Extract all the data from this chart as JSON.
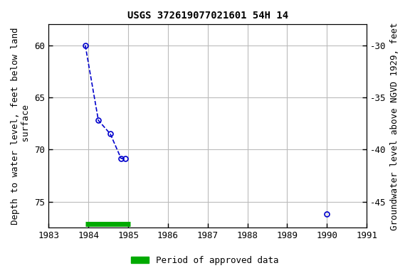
{
  "title": "USGS 372619077021601 54H 14",
  "ylabel_left": "Depth to water level, feet below land\n surface",
  "ylabel_right": "Groundwater level above NGVD 1929, feet",
  "xlim": [
    1983,
    1991
  ],
  "ylim_left": [
    77.5,
    58.0
  ],
  "ylim_right": [
    -47.5,
    -28.0
  ],
  "xticks": [
    1983,
    1984,
    1985,
    1986,
    1987,
    1988,
    1989,
    1990,
    1991
  ],
  "yticks_left": [
    60,
    65,
    70,
    75
  ],
  "yticks_right": [
    -30,
    -35,
    -40,
    -45
  ],
  "connected_x": [
    1983.92,
    1984.25,
    1984.55,
    1984.82,
    1984.92
  ],
  "connected_y": [
    60.0,
    67.2,
    68.5,
    70.85,
    70.85
  ],
  "isolated_x": [
    1990.0
  ],
  "isolated_y": [
    76.2
  ],
  "line_color": "#0000cc",
  "marker_color": "#0000cc",
  "line_style": "--",
  "grid_color": "#bbbbbb",
  "bg_color": "#ffffff",
  "approved_bar_x_start": 1983.92,
  "approved_bar_x_end": 1985.05,
  "approved_bar_y": 77.1,
  "approved_color": "#00aa00",
  "approved_bar_linewidth": 5,
  "legend_label": "Period of approved data",
  "tick_fontsize": 9,
  "label_fontsize": 9,
  "title_fontsize": 10
}
